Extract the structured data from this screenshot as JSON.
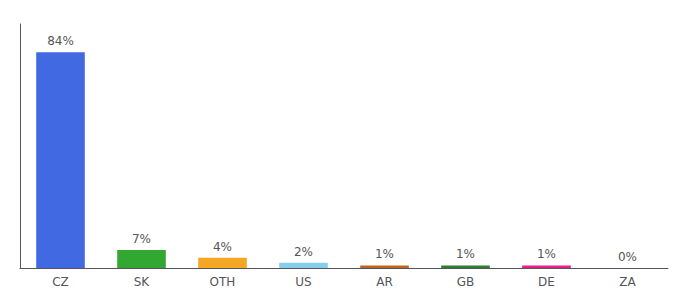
{
  "chart_data": {
    "type": "bar",
    "categories": [
      "CZ",
      "SK",
      "OTH",
      "US",
      "AR",
      "GB",
      "DE",
      "ZA"
    ],
    "values": [
      84,
      7,
      4,
      2,
      1,
      1,
      1,
      0
    ],
    "value_labels": [
      "84%",
      "7%",
      "4%",
      "2%",
      "1%",
      "1%",
      "1%",
      "0%"
    ],
    "colors": [
      "#4169e1",
      "#32a832",
      "#f5a623",
      "#87ceeb",
      "#c0651a",
      "#2e7d32",
      "#e91e8c",
      "#b0b0b0"
    ],
    "ylim": [
      0,
      95
    ],
    "data_labels": true,
    "tick_labels": "x",
    "grid": false
  }
}
